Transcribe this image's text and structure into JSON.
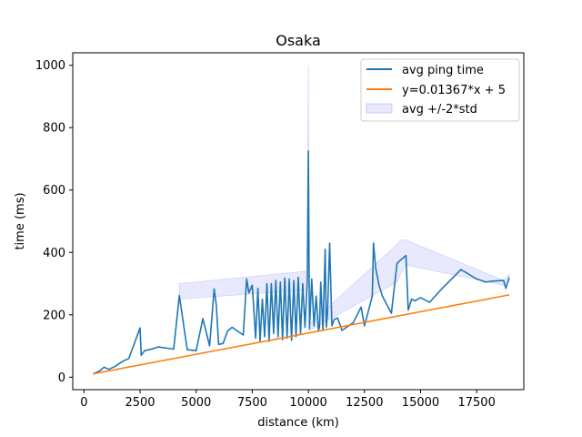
{
  "chart_data": {
    "type": "line",
    "title": "Osaka",
    "xlabel": "distance (km)",
    "ylabel": "time (ms)",
    "xlim": [
      -500,
      19600
    ],
    "ylim": [
      -40,
      1040
    ],
    "xticks": [
      0,
      2500,
      5000,
      7500,
      10000,
      12500,
      15000,
      17500
    ],
    "yticks": [
      0,
      200,
      400,
      600,
      800,
      1000
    ],
    "xtick_labels": [
      "0",
      "2500",
      "5000",
      "7500",
      "10000",
      "12500",
      "15000",
      "17500"
    ],
    "ytick_labels": [
      "0",
      "200",
      "400",
      "600",
      "800",
      "1000"
    ],
    "grid": false,
    "legend_position": "top-right",
    "series": [
      {
        "name": "avg ping time",
        "color": "#1f77b4",
        "x": [
          400,
          700,
          900,
          1100,
          1400,
          1700,
          2000,
          2500,
          2550,
          2700,
          3000,
          3300,
          4000,
          4250,
          4600,
          5000,
          5300,
          5600,
          5800,
          5900,
          6000,
          6200,
          6400,
          6600,
          7100,
          7250,
          7350,
          7500,
          7650,
          7750,
          7850,
          7950,
          8050,
          8150,
          8250,
          8350,
          8450,
          8550,
          8650,
          8750,
          8850,
          8950,
          9050,
          9150,
          9250,
          9350,
          9450,
          9550,
          9650,
          9750,
          9850,
          9950,
          10000,
          10050,
          10150,
          10250,
          10350,
          10450,
          10500,
          10550,
          10650,
          10750,
          10800,
          10850,
          10950,
          11050,
          11150,
          11300,
          11500,
          11700,
          12000,
          12350,
          12500,
          12850,
          12900,
          13000,
          13150,
          13300,
          13700,
          13950,
          14100,
          14350,
          14450,
          14600,
          14750,
          15000,
          15400,
          15900,
          16800,
          17500,
          17900,
          18200,
          18700,
          18800,
          18950
        ],
        "values": [
          10,
          20,
          32,
          25,
          35,
          50,
          60,
          158,
          70,
          85,
          90,
          97,
          90,
          262,
          88,
          85,
          188,
          100,
          283,
          230,
          105,
          108,
          148,
          160,
          135,
          315,
          270,
          295,
          125,
          285,
          115,
          250,
          130,
          300,
          115,
          300,
          140,
          310,
          130,
          305,
          120,
          318,
          125,
          315,
          118,
          310,
          130,
          320,
          140,
          300,
          160,
          310,
          725,
          155,
          315,
          165,
          260,
          150,
          160,
          305,
          150,
          410,
          160,
          200,
          430,
          165,
          185,
          190,
          150,
          160,
          175,
          225,
          165,
          260,
          430,
          350,
          295,
          260,
          205,
          365,
          375,
          390,
          215,
          250,
          245,
          255,
          240,
          280,
          345,
          315,
          305,
          308,
          310,
          285,
          320
        ]
      },
      {
        "name": "y=0.01367*x + 5",
        "color": "#ff7f0e",
        "x": [
          400,
          18950
        ],
        "values": [
          10.5,
          264
        ]
      }
    ],
    "band": {
      "name": "avg +/-2*std",
      "color": "#6b6bf5",
      "x": [
        4250,
        9950,
        10000,
        10050,
        13950,
        14100,
        14350,
        18700,
        18950
      ],
      "lower": [
        250,
        280,
        450,
        150,
        305,
        330,
        360,
        295,
        310
      ],
      "upper": [
        300,
        340,
        1000,
        170,
        425,
        440,
        440,
        310,
        330
      ]
    }
  }
}
